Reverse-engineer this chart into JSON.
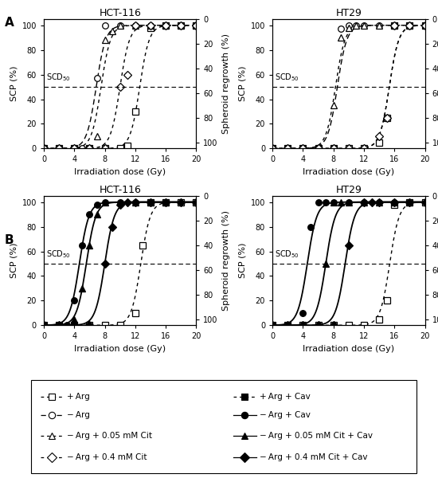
{
  "panel_A_HCT116": {
    "title": "HCT-116",
    "plus_arg": {
      "x": [
        0,
        2,
        4,
        6,
        8,
        10,
        11,
        12,
        14,
        16,
        18,
        20
      ],
      "y": [
        0,
        0,
        0,
        0,
        0,
        0,
        2,
        30,
        98,
        100,
        100,
        100
      ]
    },
    "minus_arg": {
      "x": [
        0,
        2,
        4,
        5,
        6,
        7,
        8,
        10,
        12,
        14,
        16,
        18,
        20
      ],
      "y": [
        0,
        0,
        0,
        0,
        0,
        57,
        100,
        100,
        100,
        100,
        100,
        100,
        100
      ]
    },
    "minus_arg_cit005": {
      "x": [
        0,
        2,
        4,
        6,
        7,
        8,
        9,
        10,
        12,
        14,
        16,
        18,
        20
      ],
      "y": [
        0,
        0,
        0,
        0,
        10,
        88,
        95,
        100,
        100,
        100,
        100,
        100,
        100
      ]
    },
    "minus_arg_cit04": {
      "x": [
        0,
        2,
        4,
        6,
        8,
        10,
        11,
        12,
        14,
        16,
        18,
        20
      ],
      "y": [
        0,
        0,
        0,
        0,
        0,
        50,
        60,
        100,
        100,
        100,
        100,
        100
      ]
    }
  },
  "panel_A_HT29": {
    "title": "HT29",
    "plus_arg": {
      "x": [
        0,
        2,
        4,
        6,
        8,
        10,
        12,
        14,
        15,
        16,
        18,
        20
      ],
      "y": [
        0,
        0,
        0,
        0,
        0,
        0,
        0,
        5,
        25,
        100,
        100,
        100
      ]
    },
    "minus_arg": {
      "x": [
        0,
        2,
        4,
        6,
        8,
        9,
        10,
        11,
        12,
        14,
        16,
        18,
        20
      ],
      "y": [
        0,
        0,
        0,
        0,
        0,
        97,
        100,
        100,
        100,
        100,
        100,
        100,
        100
      ]
    },
    "minus_arg_cit005": {
      "x": [
        0,
        2,
        4,
        6,
        8,
        9,
        10,
        11,
        12,
        14,
        16,
        18,
        20
      ],
      "y": [
        0,
        0,
        0,
        0,
        35,
        90,
        98,
        100,
        100,
        100,
        100,
        100,
        100
      ]
    },
    "minus_arg_cit04": {
      "x": [
        0,
        2,
        4,
        6,
        8,
        10,
        12,
        14,
        15,
        16,
        18,
        20
      ],
      "y": [
        0,
        0,
        0,
        0,
        0,
        0,
        0,
        10,
        25,
        100,
        100,
        100
      ]
    }
  },
  "panel_B_HCT116": {
    "title": "HCT-116",
    "plus_arg_cav": {
      "x": [
        0,
        2,
        4,
        6,
        8,
        10,
        12,
        13,
        14,
        16,
        18,
        20
      ],
      "y": [
        0,
        0,
        0,
        0,
        0,
        0,
        10,
        65,
        100,
        100,
        100,
        100
      ]
    },
    "minus_arg_cav": {
      "x": [
        0,
        2,
        3,
        4,
        5,
        6,
        7,
        8,
        10,
        12,
        14,
        16
      ],
      "y": [
        0,
        0,
        0,
        20,
        65,
        90,
        98,
        100,
        100,
        100,
        100,
        100
      ]
    },
    "minus_arg_cit005_cav": {
      "x": [
        0,
        2,
        3,
        4,
        5,
        6,
        7,
        8,
        10,
        12,
        14,
        16
      ],
      "y": [
        0,
        0,
        0,
        5,
        30,
        65,
        90,
        100,
        100,
        100,
        100,
        100
      ]
    },
    "minus_arg_cit04_cav": {
      "x": [
        0,
        2,
        4,
        6,
        8,
        9,
        10,
        11,
        12,
        14,
        16,
        18,
        20
      ],
      "y": [
        0,
        0,
        0,
        0,
        50,
        80,
        98,
        100,
        100,
        100,
        100,
        100,
        100
      ]
    }
  },
  "panel_B_HT29": {
    "title": "HT29",
    "plus_arg_cav": {
      "x": [
        0,
        2,
        4,
        6,
        8,
        10,
        12,
        14,
        15,
        16,
        18,
        20
      ],
      "y": [
        0,
        0,
        0,
        0,
        0,
        0,
        0,
        5,
        20,
        98,
        100,
        100
      ]
    },
    "minus_arg_cav": {
      "x": [
        0,
        2,
        4,
        5,
        6,
        7,
        8,
        10,
        12,
        14,
        16,
        18
      ],
      "y": [
        0,
        0,
        10,
        80,
        100,
        100,
        100,
        100,
        100,
        100,
        100,
        100
      ]
    },
    "minus_arg_cit005_cav": {
      "x": [
        0,
        2,
        4,
        6,
        7,
        8,
        9,
        10,
        12,
        14,
        16,
        18
      ],
      "y": [
        0,
        0,
        0,
        0,
        50,
        100,
        100,
        100,
        100,
        100,
        100,
        100
      ]
    },
    "minus_arg_cit04_cav": {
      "x": [
        0,
        2,
        4,
        6,
        8,
        10,
        12,
        13,
        14,
        16,
        18,
        20
      ],
      "y": [
        0,
        0,
        0,
        0,
        0,
        65,
        100,
        100,
        100,
        100,
        100,
        100
      ]
    }
  }
}
